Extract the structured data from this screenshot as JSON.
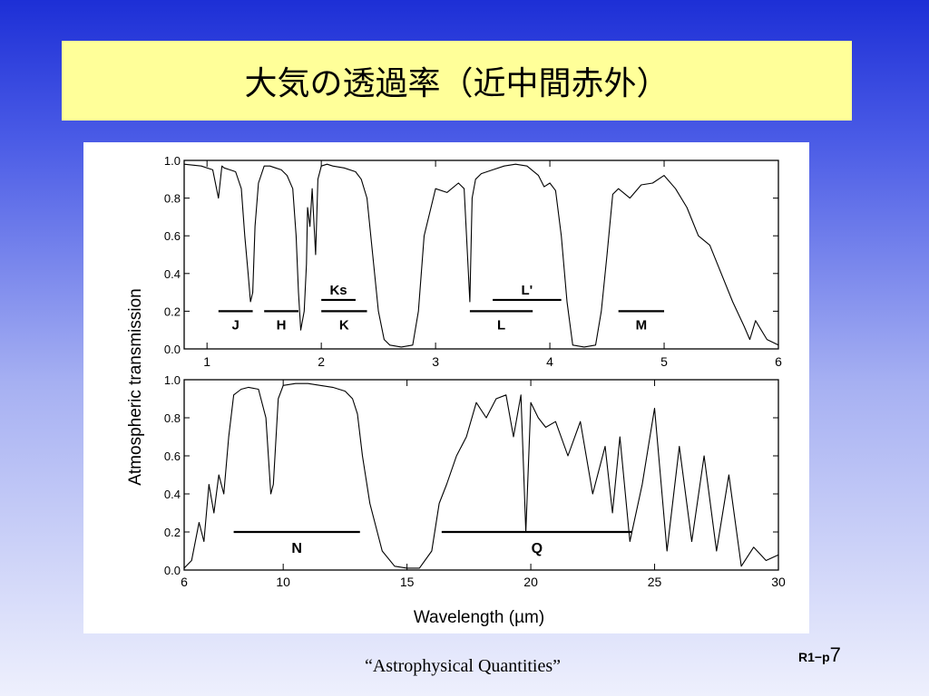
{
  "slide": {
    "title": "大気の透過率（近中間赤外）",
    "source": "“Astrophysical Quantities”",
    "page_prefix": "R1−p",
    "page_number": "7"
  },
  "chart_data": [
    {
      "type": "line",
      "panel": "top",
      "ylabel": "Atmospheric transmission",
      "xlim": [
        0.8,
        6
      ],
      "ylim": [
        0,
        1.0
      ],
      "x_ticks": [
        "1",
        "2",
        "3",
        "4",
        "5",
        "6"
      ],
      "y_ticks": [
        "0.0",
        "0.2",
        "0.4",
        "0.6",
        "0.8",
        "1.0"
      ],
      "series": [
        {
          "x": [
            0.8,
            0.95,
            1.05,
            1.1,
            1.13,
            1.15,
            1.2,
            1.25,
            1.3,
            1.33,
            1.36,
            1.38,
            1.4,
            1.42,
            1.45,
            1.5,
            1.55,
            1.6,
            1.65,
            1.7,
            1.75,
            1.78,
            1.8,
            1.82,
            1.85,
            1.87,
            1.88,
            1.9,
            1.92,
            1.95,
            1.97,
            2.0,
            2.05,
            2.1,
            2.2,
            2.3,
            2.35,
            2.4,
            2.45,
            2.5,
            2.55,
            2.6,
            2.7,
            2.8,
            2.85,
            2.9,
            3.0,
            3.1,
            3.2,
            3.25,
            3.3,
            3.32,
            3.35,
            3.4,
            3.5,
            3.6,
            3.7,
            3.8,
            3.9,
            3.95,
            4.0,
            4.05,
            4.1,
            4.15,
            4.2,
            4.3,
            4.4,
            4.45,
            4.5,
            4.55,
            4.6,
            4.7,
            4.8,
            4.9,
            5.0,
            5.1,
            5.2,
            5.3,
            5.4,
            5.5,
            5.6,
            5.7,
            5.75,
            5.8,
            5.9,
            6.0
          ],
          "y": [
            0.98,
            0.97,
            0.95,
            0.8,
            0.97,
            0.96,
            0.95,
            0.94,
            0.85,
            0.6,
            0.4,
            0.25,
            0.3,
            0.65,
            0.88,
            0.97,
            0.97,
            0.96,
            0.95,
            0.92,
            0.85,
            0.6,
            0.3,
            0.1,
            0.2,
            0.45,
            0.75,
            0.65,
            0.85,
            0.5,
            0.9,
            0.97,
            0.98,
            0.97,
            0.96,
            0.94,
            0.9,
            0.8,
            0.5,
            0.2,
            0.05,
            0.02,
            0.01,
            0.02,
            0.2,
            0.6,
            0.85,
            0.83,
            0.88,
            0.85,
            0.25,
            0.8,
            0.9,
            0.93,
            0.95,
            0.97,
            0.98,
            0.97,
            0.92,
            0.86,
            0.88,
            0.84,
            0.6,
            0.25,
            0.02,
            0.01,
            0.02,
            0.2,
            0.5,
            0.82,
            0.85,
            0.8,
            0.87,
            0.88,
            0.92,
            0.85,
            0.75,
            0.6,
            0.55,
            0.4,
            0.25,
            0.12,
            0.05,
            0.15,
            0.05,
            0.02
          ]
        }
      ],
      "bands": [
        {
          "label": "J",
          "x1": 1.1,
          "x2": 1.4
        },
        {
          "label": "H",
          "x1": 1.5,
          "x2": 1.8
        },
        {
          "label": "Ks",
          "x1": 2.0,
          "x2": 2.3
        },
        {
          "label": "K",
          "x1": 2.0,
          "x2": 2.4
        },
        {
          "label": "L'",
          "x1": 3.5,
          "x2": 4.1
        },
        {
          "label": "L",
          "x1": 3.3,
          "x2": 3.85
        },
        {
          "label": "M",
          "x1": 4.6,
          "x2": 5.0
        }
      ]
    },
    {
      "type": "line",
      "panel": "bottom",
      "xlabel": "Wavelength (µm)",
      "xlim": [
        6,
        30
      ],
      "ylim": [
        0,
        1.0
      ],
      "x_ticks": [
        "6",
        "10",
        "15",
        "20",
        "25",
        "30"
      ],
      "y_ticks": [
        "0.0",
        "0.2",
        "0.4",
        "0.6",
        "0.8",
        "1.0"
      ],
      "series": [
        {
          "x": [
            6.0,
            6.3,
            6.6,
            6.8,
            7.0,
            7.2,
            7.4,
            7.6,
            7.8,
            8.0,
            8.3,
            8.6,
            9.0,
            9.3,
            9.5,
            9.6,
            9.8,
            10.0,
            10.5,
            11.0,
            11.5,
            12.0,
            12.5,
            12.8,
            13.0,
            13.2,
            13.5,
            14.0,
            14.5,
            15.0,
            15.5,
            16.0,
            16.3,
            16.6,
            17.0,
            17.4,
            17.8,
            18.2,
            18.6,
            19.0,
            19.3,
            19.6,
            19.8,
            20.0,
            20.3,
            20.6,
            21.0,
            21.5,
            22.0,
            22.5,
            23.0,
            23.3,
            23.6,
            24.0,
            24.5,
            25.0,
            25.5,
            26.0,
            26.5,
            27.0,
            27.5,
            28.0,
            28.5,
            29.0,
            29.5,
            30.0
          ],
          "y": [
            0.01,
            0.05,
            0.25,
            0.15,
            0.45,
            0.3,
            0.5,
            0.4,
            0.7,
            0.92,
            0.95,
            0.96,
            0.95,
            0.8,
            0.4,
            0.45,
            0.9,
            0.97,
            0.98,
            0.98,
            0.97,
            0.96,
            0.94,
            0.9,
            0.82,
            0.6,
            0.35,
            0.1,
            0.02,
            0.01,
            0.01,
            0.1,
            0.35,
            0.45,
            0.6,
            0.7,
            0.88,
            0.8,
            0.9,
            0.92,
            0.7,
            0.92,
            0.2,
            0.88,
            0.8,
            0.75,
            0.78,
            0.6,
            0.78,
            0.4,
            0.65,
            0.3,
            0.7,
            0.15,
            0.45,
            0.85,
            0.1,
            0.65,
            0.15,
            0.6,
            0.1,
            0.5,
            0.02,
            0.12,
            0.05,
            0.08
          ]
        }
      ],
      "bands": [
        {
          "label": "N",
          "x1": 8.0,
          "x2": 13.1
        },
        {
          "label": "Q",
          "x1": 16.4,
          "x2": 24.1
        }
      ]
    }
  ]
}
